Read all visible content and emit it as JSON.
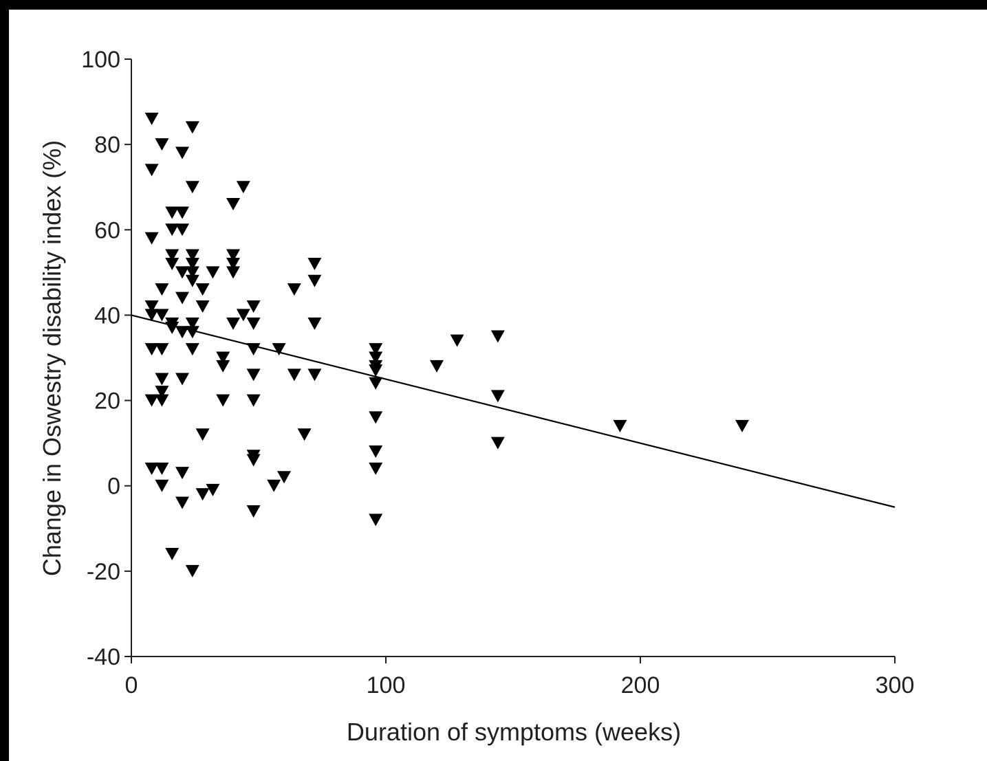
{
  "chart_data": {
    "type": "scatter",
    "xlabel": "Duration of symptoms (weeks)",
    "ylabel": "Change in Oswestry disability index (%)",
    "xlim": [
      0,
      300
    ],
    "ylim": [
      -40,
      100
    ],
    "xticks": [
      "0",
      "100",
      "200",
      "300"
    ],
    "yticks": [
      "100",
      "80",
      "60",
      "40",
      "20",
      "0",
      "-20",
      "-40"
    ],
    "grid": false,
    "marker": "inverted-triangle",
    "colors": {
      "marker": "#000000",
      "axis": "#231f20",
      "frame": "#000000"
    },
    "series": [
      {
        "points": [
          [
            8,
            86
          ],
          [
            8,
            74
          ],
          [
            8,
            58
          ],
          [
            8,
            42
          ],
          [
            8,
            40
          ],
          [
            8,
            32
          ],
          [
            8,
            20
          ],
          [
            8,
            4
          ],
          [
            12,
            80
          ],
          [
            12,
            46
          ],
          [
            12,
            40
          ],
          [
            12,
            32
          ],
          [
            12,
            25
          ],
          [
            12,
            22
          ],
          [
            12,
            20
          ],
          [
            12,
            4
          ],
          [
            12,
            0
          ],
          [
            16,
            64
          ],
          [
            16,
            60
          ],
          [
            16,
            54
          ],
          [
            16,
            52
          ],
          [
            16,
            38
          ],
          [
            16,
            37
          ],
          [
            16,
            -16
          ],
          [
            20,
            78
          ],
          [
            20,
            64
          ],
          [
            20,
            60
          ],
          [
            20,
            50
          ],
          [
            20,
            44
          ],
          [
            20,
            36
          ],
          [
            20,
            25
          ],
          [
            20,
            3
          ],
          [
            20,
            -4
          ],
          [
            24,
            84
          ],
          [
            24,
            70
          ],
          [
            24,
            54
          ],
          [
            24,
            52
          ],
          [
            24,
            50
          ],
          [
            24,
            48
          ],
          [
            24,
            38
          ],
          [
            24,
            36
          ],
          [
            24,
            32
          ],
          [
            24,
            -20
          ],
          [
            28,
            46
          ],
          [
            28,
            42
          ],
          [
            28,
            12
          ],
          [
            28,
            -2
          ],
          [
            32,
            50
          ],
          [
            32,
            -1
          ],
          [
            36,
            30
          ],
          [
            36,
            28
          ],
          [
            36,
            20
          ],
          [
            40,
            66
          ],
          [
            40,
            54
          ],
          [
            40,
            52
          ],
          [
            40,
            50
          ],
          [
            40,
            38
          ],
          [
            44,
            70
          ],
          [
            44,
            40
          ],
          [
            48,
            42
          ],
          [
            48,
            38
          ],
          [
            48,
            32
          ],
          [
            48,
            26
          ],
          [
            48,
            20
          ],
          [
            48,
            7
          ],
          [
            48,
            6
          ],
          [
            48,
            -6
          ],
          [
            56,
            0
          ],
          [
            58,
            32
          ],
          [
            60,
            2
          ],
          [
            64,
            46
          ],
          [
            64,
            26
          ],
          [
            68,
            12
          ],
          [
            72,
            52
          ],
          [
            72,
            48
          ],
          [
            72,
            38
          ],
          [
            72,
            26
          ],
          [
            96,
            32
          ],
          [
            96,
            30
          ],
          [
            96,
            28
          ],
          [
            96,
            27
          ],
          [
            96,
            24
          ],
          [
            96,
            16
          ],
          [
            96,
            8
          ],
          [
            96,
            4
          ],
          [
            96,
            -8
          ],
          [
            120,
            28
          ],
          [
            128,
            34
          ],
          [
            144,
            35
          ],
          [
            144,
            21
          ],
          [
            144,
            10
          ],
          [
            192,
            14
          ],
          [
            240,
            14
          ]
        ]
      }
    ],
    "regression_line": [
      [
        0,
        40
      ],
      [
        300,
        -5
      ]
    ]
  }
}
